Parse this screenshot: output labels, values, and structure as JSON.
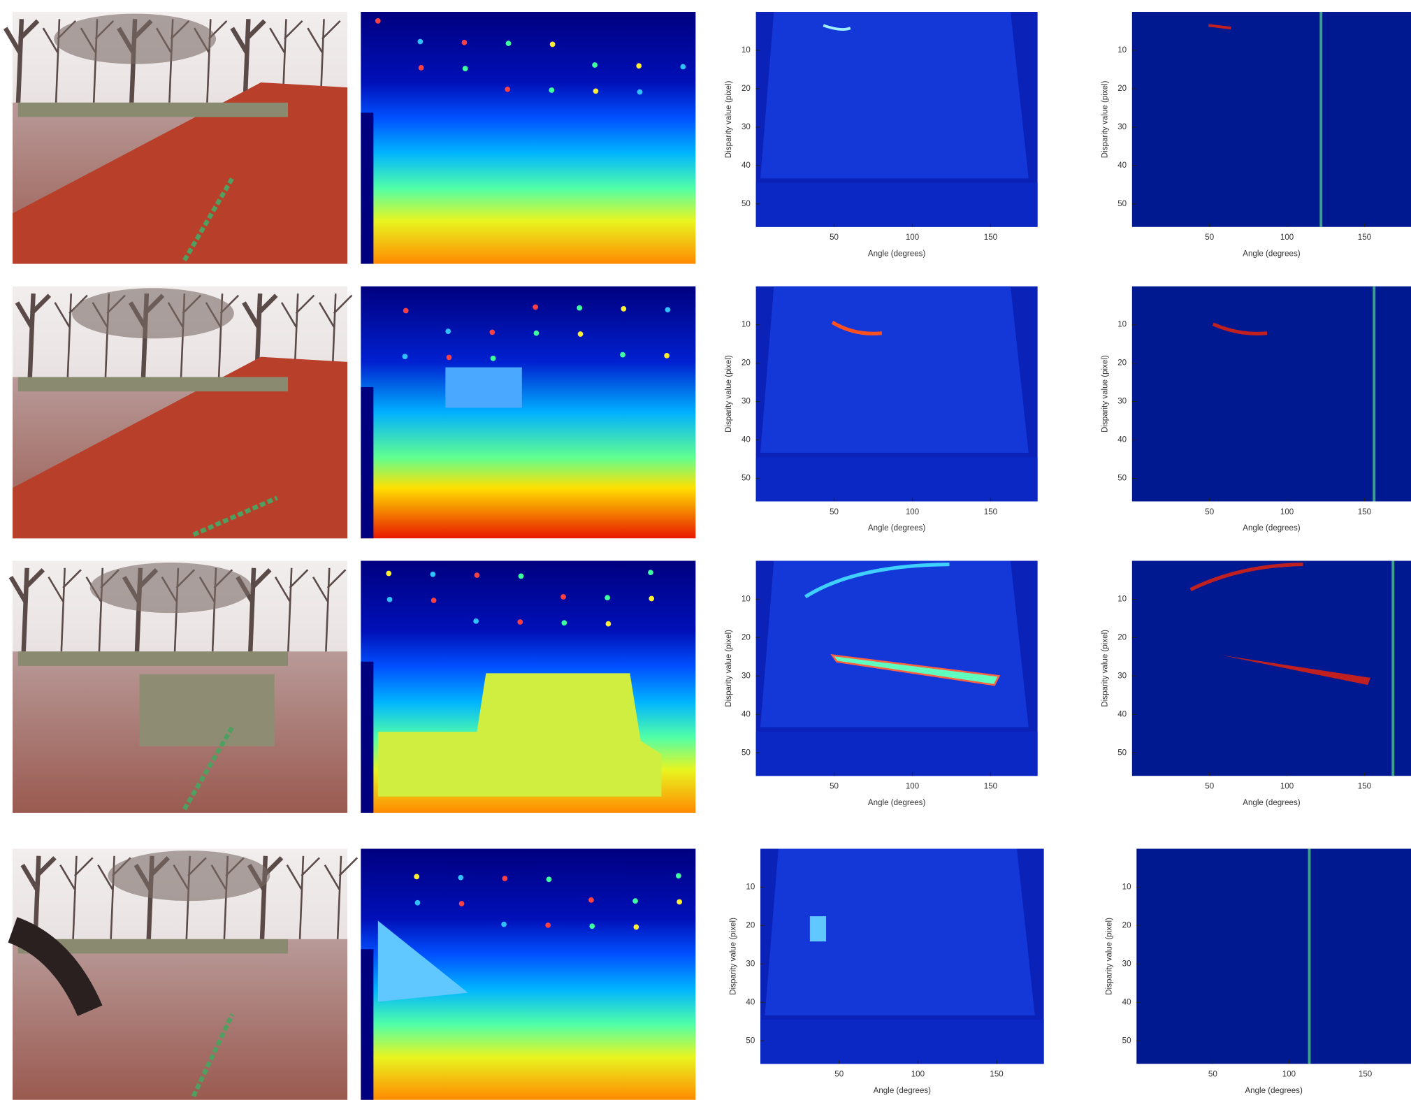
{
  "rows": [
    {
      "hough": {
        "xlabel": "Angle (degrees)",
        "ylabel": "Disparity value (pixel)",
        "xticks": [
          50,
          100,
          150
        ],
        "yticks": [
          10,
          20,
          30,
          40,
          50
        ],
        "xlim": [
          0,
          180
        ],
        "ylim": [
          0,
          56
        ]
      },
      "filtered": {
        "xlabel": "Angle (degrees)",
        "ylabel": "Disparity value (pixel)",
        "xticks": [
          50,
          100,
          150
        ],
        "yticks": [
          10,
          20,
          30,
          40,
          50
        ],
        "xlim": [
          0,
          180
        ],
        "ylim": [
          0,
          56
        ]
      }
    },
    {
      "hough": {
        "xlabel": "Angle (degrees)",
        "ylabel": "Disparity value (pixel)",
        "xticks": [
          50,
          100,
          150
        ],
        "yticks": [
          10,
          20,
          30,
          40,
          50
        ],
        "xlim": [
          0,
          180
        ],
        "ylim": [
          0,
          56
        ]
      },
      "filtered": {
        "xlabel": "Angle (degrees)",
        "ylabel": "Disparity value (pixel)",
        "xticks": [
          50,
          100,
          150
        ],
        "yticks": [
          10,
          20,
          30,
          40,
          50
        ],
        "xlim": [
          0,
          180
        ],
        "ylim": [
          0,
          56
        ]
      }
    },
    {
      "hough": {
        "xlabel": "Angle (degrees)",
        "ylabel": "Disparity value (pixel)",
        "xticks": [
          50,
          100,
          150
        ],
        "yticks": [
          10,
          20,
          30,
          40,
          50
        ],
        "xlim": [
          0,
          180
        ],
        "ylim": [
          0,
          56
        ]
      },
      "filtered": {
        "xlabel": "Angle (degrees)",
        "ylabel": "Disparity value (pixel)",
        "xticks": [
          50,
          100,
          150
        ],
        "yticks": [
          10,
          20,
          30,
          40,
          50
        ],
        "xlim": [
          0,
          180
        ],
        "ylim": [
          0,
          56
        ]
      }
    },
    {
      "hough": {
        "xlabel": "Angle (degrees)",
        "ylabel": "Disparity value (pixel)",
        "xticks": [
          50,
          100,
          150
        ],
        "yticks": [
          10,
          20,
          30,
          40,
          50
        ],
        "xlim": [
          0,
          180
        ],
        "ylim": [
          0,
          56
        ]
      },
      "filtered": {
        "xlabel": "Angle (degrees)",
        "ylabel": "Disparity value (pixel)",
        "xticks": [
          50,
          100,
          150
        ],
        "yticks": [
          10,
          20,
          30,
          40,
          50
        ],
        "xlim": [
          0,
          180
        ],
        "ylim": [
          0,
          56
        ]
      }
    }
  ]
}
